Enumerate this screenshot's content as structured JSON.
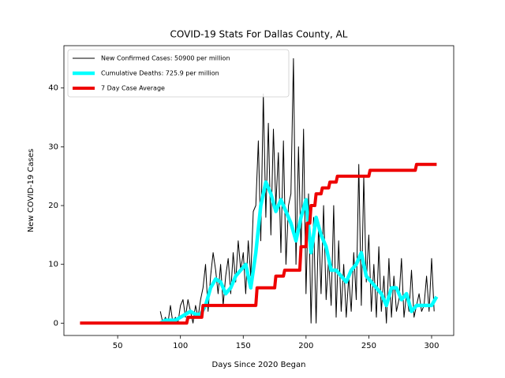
{
  "chart_data": {
    "type": "line",
    "title": "COVID-19 Stats For Dallas County, AL",
    "x_label": "Days Since 2020 Began",
    "y_label": "New COVID-19 Cases",
    "xlim": [
      7.2,
      317.6
    ],
    "ylim": [
      -2.1,
      47.2
    ],
    "xticks": [
      50,
      100,
      150,
      200,
      250,
      300
    ],
    "yticks": [
      0,
      10,
      20,
      30,
      40
    ],
    "legend": "upper left",
    "series": [
      {
        "name": "New Confirmed Cases: 50900 per million",
        "color": "#000000",
        "width": 1,
        "x": [
          84,
          86,
          88,
          90,
          92,
          94,
          96,
          98,
          100,
          102,
          104,
          106,
          108,
          110,
          112,
          114,
          116,
          118,
          120,
          122,
          124,
          126,
          128,
          130,
          132,
          134,
          136,
          138,
          140,
          142,
          144,
          146,
          148,
          150,
          152,
          154,
          156,
          158,
          160,
          162,
          164,
          166,
          168,
          170,
          172,
          174,
          176,
          178,
          180,
          182,
          184,
          186,
          188,
          190,
          192,
          194,
          196,
          198,
          200,
          202,
          204,
          206,
          208,
          210,
          212,
          214,
          216,
          218,
          220,
          222,
          224,
          226,
          228,
          230,
          232,
          234,
          236,
          238,
          240,
          242,
          244,
          246,
          248,
          250,
          252,
          254,
          256,
          258,
          260,
          262,
          264,
          266,
          268,
          270,
          272,
          274,
          276,
          278,
          280,
          282,
          284,
          286,
          288,
          290,
          292,
          294,
          296,
          298,
          300,
          302
        ],
        "values": [
          2,
          0,
          1,
          0,
          3,
          0,
          1,
          0,
          3,
          4,
          1,
          4,
          2,
          0,
          3,
          1,
          4,
          6,
          10,
          2,
          8,
          12,
          9,
          5,
          10,
          3,
          8,
          11,
          5,
          12,
          7,
          14,
          9,
          12,
          5,
          14,
          8,
          19,
          20,
          31,
          14,
          39,
          18,
          34,
          15,
          33,
          20,
          29,
          12,
          31,
          10,
          20,
          22,
          45,
          10,
          30,
          12,
          33,
          5,
          22,
          0,
          18,
          0,
          17,
          5,
          20,
          4,
          11,
          3,
          20,
          1,
          14,
          2,
          10,
          1,
          8,
          2,
          12,
          4,
          27,
          3,
          25,
          7,
          15,
          2,
          10,
          1,
          13,
          2,
          8,
          0,
          11,
          1,
          8,
          2,
          4,
          11,
          1,
          5,
          2,
          9,
          1,
          3,
          5,
          2,
          3,
          8,
          2,
          11,
          2
        ]
      },
      {
        "name": "Cumulative Deaths: 725.9 per million",
        "color": "#00ffff",
        "width": 4.5,
        "x": [
          84,
          88,
          92,
          96,
          100,
          104,
          108,
          112,
          116,
          120,
          124,
          128,
          132,
          136,
          140,
          144,
          148,
          152,
          156,
          160,
          164,
          168,
          172,
          176,
          180,
          184,
          188,
          192,
          196,
          200,
          204,
          208,
          212,
          216,
          220,
          224,
          228,
          232,
          236,
          240,
          244,
          248,
          252,
          256,
          260,
          264,
          268,
          272,
          276,
          280,
          284,
          288,
          292,
          296,
          300,
          304
        ],
        "values": [
          0,
          0.5,
          0.5,
          0.5,
          1,
          1.5,
          2,
          1.5,
          1.5,
          3,
          6,
          7.5,
          7,
          5,
          6,
          8,
          9,
          10,
          6,
          12,
          20,
          24,
          22,
          19,
          21,
          19,
          17,
          14,
          18,
          21,
          12,
          18,
          15,
          13,
          9,
          9,
          8,
          7,
          9,
          10,
          12,
          8,
          7,
          6,
          5,
          3,
          6,
          6,
          4,
          5,
          2,
          3,
          3,
          3,
          3,
          4.5
        ]
      },
      {
        "name": "7 Day Case Average",
        "color": "#ee0000",
        "width": 4,
        "x": [
          20,
          105,
          106,
          117,
          118,
          160,
          161,
          175,
          176,
          182,
          183,
          195,
          196,
          200,
          201,
          203,
          204,
          207,
          208,
          212,
          213,
          218,
          219,
          224,
          225,
          250,
          251,
          287,
          288,
          304
        ],
        "values": [
          0,
          0,
          1,
          1,
          3,
          3,
          6,
          6,
          8,
          8,
          9,
          9,
          13,
          13,
          17,
          17,
          20,
          20,
          22,
          22,
          23,
          23,
          24,
          24,
          25,
          25,
          26,
          26,
          27,
          27
        ]
      }
    ]
  }
}
